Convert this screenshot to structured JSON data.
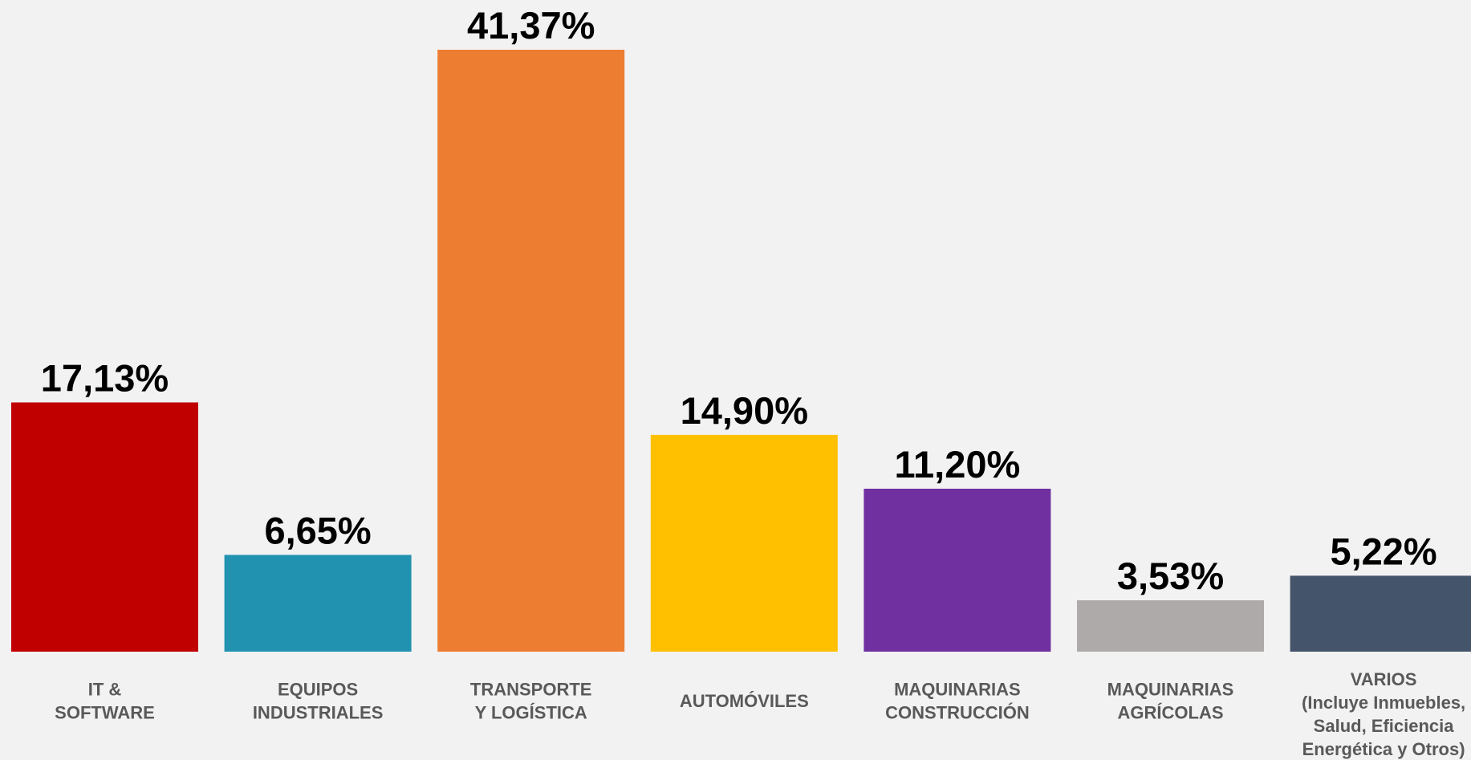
{
  "chart_data": {
    "type": "bar",
    "categories": [
      "IT &\nSOFTWARE",
      "EQUIPOS\nINDUSTRIALES",
      "TRANSPORTE\nY LOGÍSTICA",
      "AUTOMÓVILES",
      "MAQUINARIAS\nCONSTRUCCIÓN",
      "MAQUINARIAS\nAGRÍCOLAS",
      "VARIOS\n(Incluye Inmuebles,\nSalud, Eficiencia\nEnergética y Otros)"
    ],
    "values": [
      17.13,
      6.65,
      41.37,
      14.9,
      11.2,
      3.53,
      5.22
    ],
    "value_labels": [
      "17,13%",
      "6,65%",
      "41,37%",
      "14,90%",
      "11,20%",
      "3,53%",
      "5,22%"
    ],
    "colors": [
      "#c00000",
      "#2193b0",
      "#ed7d31",
      "#ffc000",
      "#7030a0",
      "#aeaaaa",
      "#44546a"
    ]
  }
}
